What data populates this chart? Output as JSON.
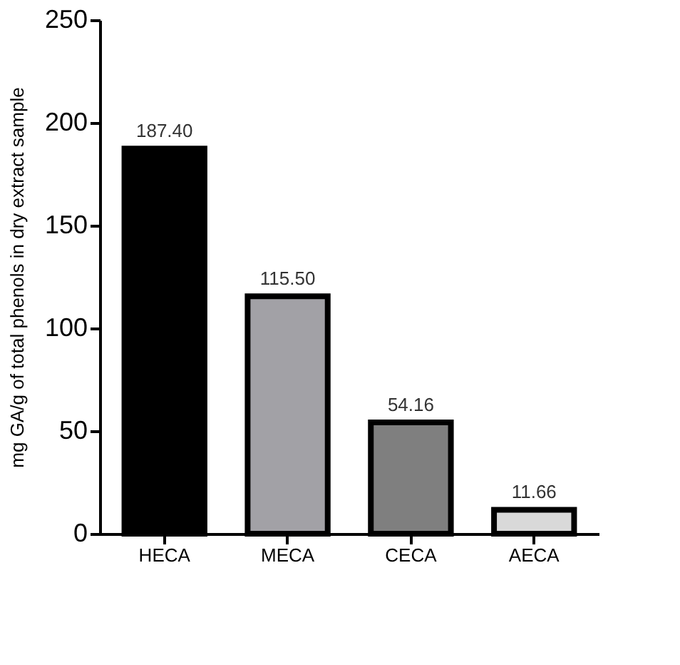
{
  "chart_data": {
    "type": "bar",
    "ylabel": "mg GA/g of total phenols in dry extract sample",
    "categories": [
      "HECA",
      "MECA",
      "CECA",
      "AECA"
    ],
    "values": [
      187.4,
      115.5,
      54.16,
      11.66
    ],
    "value_labels": [
      "187.40",
      "115.50",
      "54.16",
      "11.66"
    ],
    "colors": [
      "#000000",
      "#a2a1a6",
      "#7f7f7f",
      "#d9d9d9"
    ],
    "ylim": [
      0,
      250
    ],
    "yticks": [
      0,
      50,
      100,
      150,
      200,
      250
    ],
    "grid": false
  }
}
